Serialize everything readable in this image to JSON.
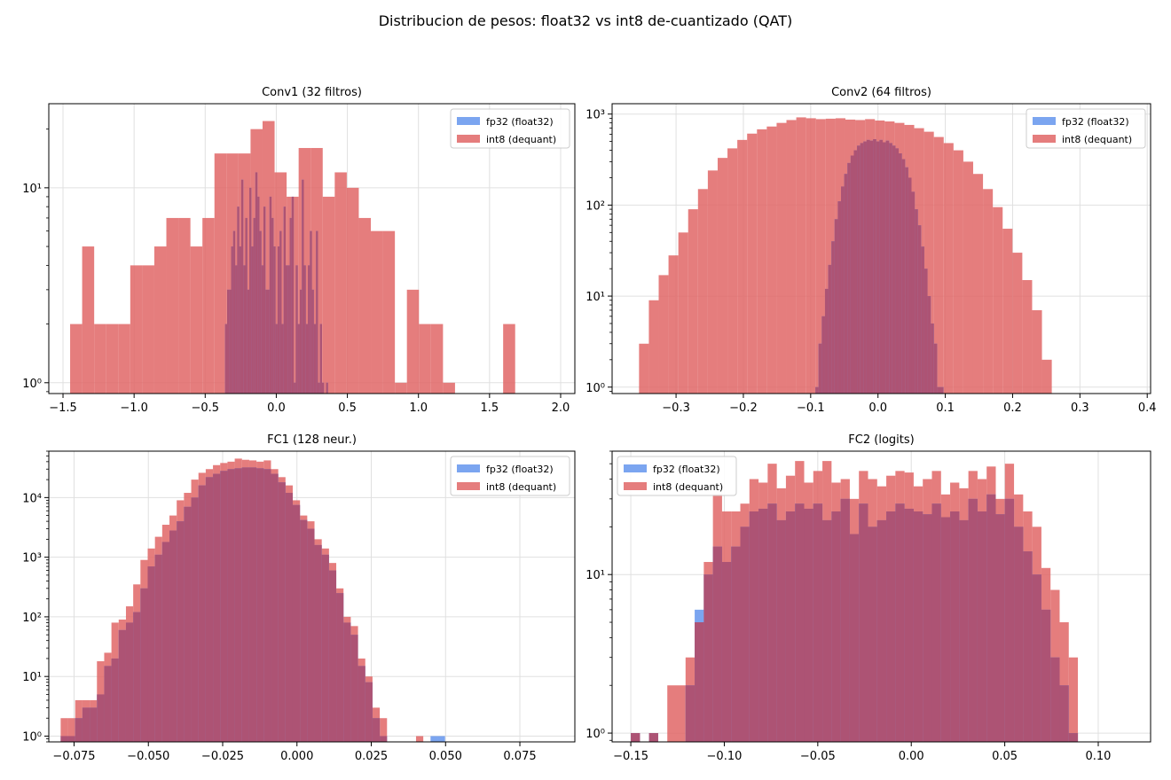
{
  "figure": {
    "suptitle": "Distribucion de pesos: float32 vs int8 de-cuantizado (QAT)"
  },
  "colors": {
    "fp32": "#6495ed",
    "int8": "#e06666",
    "overlap": "#b0506e",
    "grid": "#e0e0e0"
  },
  "legend_labels": [
    "fp32 (float32)",
    "int8 (dequant)"
  ],
  "chart_data": [
    {
      "type": "bar",
      "title": "Conv1 (32 filtros)",
      "yscale": "log",
      "xlim": [
        -1.6,
        2.1
      ],
      "ylim": [
        0.88,
        27
      ],
      "x_ticks": [
        -1.5,
        -1.0,
        -0.5,
        0.0,
        0.5,
        1.0,
        1.5,
        2.0
      ],
      "x_tick_labels": [
        "−1.5",
        "−1.0",
        "−0.5",
        "0.0",
        "0.5",
        "1.0",
        "1.5",
        "2.0"
      ],
      "y_ticks": [
        1,
        10
      ],
      "y_tick_labels": [
        "10⁰",
        "10¹"
      ],
      "legend_position": "upper right",
      "series": [
        {
          "name": "int8 (dequant)",
          "start": -1.45,
          "width": 0.0846,
          "values": [
            2,
            5,
            2,
            2,
            2,
            4,
            4,
            5,
            7,
            7,
            5,
            7,
            15,
            15,
            15,
            20,
            22,
            12,
            9,
            16,
            16,
            9,
            12,
            10,
            7,
            6,
            6,
            1,
            3,
            2,
            2,
            1,
            0,
            0,
            0,
            0,
            2
          ]
        },
        {
          "name": "fp32 (float32)",
          "start": -0.36,
          "width": 0.0142,
          "values": [
            2,
            3,
            3,
            5,
            6,
            4,
            8,
            5,
            11,
            4,
            7,
            3,
            10,
            5,
            7,
            12,
            9,
            6,
            4,
            8,
            3,
            3,
            9,
            7,
            5,
            2,
            5,
            6,
            2,
            8,
            4,
            4,
            7,
            9,
            1,
            4,
            2,
            3,
            11,
            4,
            2,
            4,
            6,
            3,
            2,
            6,
            1,
            2,
            1,
            0,
            1
          ]
        }
      ]
    },
    {
      "type": "bar",
      "title": "Conv2 (64 filtros)",
      "yscale": "log",
      "xlim": [
        -0.395,
        0.405
      ],
      "ylim": [
        0.85,
        1300
      ],
      "x_ticks": [
        -0.3,
        -0.2,
        -0.1,
        0.0,
        0.1,
        0.2,
        0.3,
        0.4
      ],
      "x_tick_labels": [
        "−0.3",
        "−0.2",
        "−0.1",
        "0.0",
        "0.1",
        "0.2",
        "0.3",
        "0.4"
      ],
      "y_ticks": [
        1,
        10,
        100,
        1000
      ],
      "y_tick_labels": [
        "10⁰",
        "10¹",
        "10²",
        "10³"
      ],
      "legend_position": "upper right",
      "series": [
        {
          "name": "int8 (dequant)",
          "start": -0.355,
          "width": 0.0146,
          "values": [
            3,
            9,
            17,
            28,
            50,
            90,
            150,
            240,
            330,
            420,
            520,
            610,
            680,
            730,
            800,
            860,
            920,
            900,
            880,
            890,
            900,
            870,
            860,
            880,
            850,
            830,
            800,
            760,
            700,
            640,
            560,
            480,
            400,
            300,
            220,
            150,
            95,
            55,
            30,
            15,
            7,
            2
          ]
        },
        {
          "name": "fp32 (float32)",
          "start": -0.093,
          "width": 0.00476,
          "values": [
            1,
            3,
            6,
            12,
            22,
            40,
            70,
            110,
            160,
            220,
            290,
            350,
            400,
            450,
            480,
            500,
            520,
            510,
            530,
            500,
            520,
            490,
            510,
            480,
            450,
            420,
            370,
            320,
            260,
            200,
            140,
            90,
            60,
            35,
            20,
            10,
            5,
            3,
            1,
            1
          ]
        }
      ]
    },
    {
      "type": "bar",
      "title": "FC1 (128 neur.)",
      "yscale": "log",
      "xlim": [
        -0.0835,
        0.0935
      ],
      "ylim": [
        0.8,
        60000
      ],
      "x_ticks": [
        -0.075,
        -0.05,
        -0.025,
        0.0,
        0.025,
        0.05,
        0.075
      ],
      "x_tick_labels": [
        "−0.075",
        "−0.050",
        "−0.025",
        "0.000",
        "0.025",
        "0.050",
        "0.075"
      ],
      "y_ticks": [
        1,
        10,
        100,
        1000,
        10000
      ],
      "y_tick_labels": [
        "10⁰",
        "10¹",
        "10²",
        "10³",
        "10⁴"
      ],
      "legend_position": "upper right",
      "series": [
        {
          "name": "int8 (dequant)",
          "start": -0.0795,
          "width": 0.00244,
          "values": [
            2,
            2,
            4,
            4,
            4,
            18,
            25,
            80,
            90,
            150,
            350,
            900,
            1400,
            2200,
            3500,
            5000,
            9000,
            12000,
            20000,
            26000,
            30000,
            35000,
            38000,
            40000,
            45000,
            43000,
            42000,
            40000,
            42000,
            30000,
            22000,
            16000,
            9000,
            5000,
            4000,
            2000,
            1400,
            800,
            300,
            100,
            70,
            20,
            10,
            3,
            2,
            0,
            0,
            0,
            0,
            1,
            0,
            0,
            0
          ]
        },
        {
          "name": "fp32 (float32)",
          "start": -0.0795,
          "width": 0.00244,
          "values": [
            1,
            1,
            2,
            3,
            3,
            5,
            15,
            20,
            60,
            80,
            120,
            300,
            700,
            1100,
            1800,
            2800,
            4000,
            7000,
            10000,
            16000,
            22000,
            25000,
            28000,
            30000,
            31000,
            32000,
            32000,
            31000,
            30000,
            25000,
            18000,
            12000,
            7500,
            4200,
            3000,
            1600,
            1100,
            600,
            250,
            80,
            50,
            15,
            8,
            2,
            1,
            0,
            0,
            0,
            0,
            0,
            0,
            1,
            1
          ]
        }
      ]
    },
    {
      "type": "bar",
      "title": "FC2 (logits)",
      "yscale": "log",
      "xlim": [
        -0.16,
        0.128
      ],
      "ylim": [
        0.88,
        60
      ],
      "x_ticks": [
        -0.15,
        -0.1,
        -0.05,
        0.0,
        0.05,
        0.1
      ],
      "x_tick_labels": [
        "−0.15",
        "−0.10",
        "−0.05",
        "0.00",
        "0.05",
        "0.10"
      ],
      "y_ticks": [
        1,
        10
      ],
      "y_tick_labels": [
        "10⁰",
        "10¹"
      ],
      "legend_position": "upper left",
      "series": [
        {
          "name": "int8 (dequant)",
          "start": -0.15,
          "width": 0.00488,
          "values": [
            1,
            0,
            1,
            0,
            2,
            2,
            3,
            5,
            12,
            32,
            25,
            25,
            28,
            40,
            38,
            50,
            35,
            42,
            52,
            38,
            45,
            52,
            38,
            40,
            30,
            45,
            40,
            36,
            42,
            45,
            44,
            36,
            40,
            45,
            32,
            38,
            35,
            45,
            40,
            48,
            30,
            50,
            32,
            25,
            20,
            11,
            8,
            5,
            3
          ]
        },
        {
          "name": "fp32 (float32)",
          "start": -0.15,
          "width": 0.00488,
          "values": [
            1,
            0,
            1,
            0,
            0,
            0,
            2,
            6,
            10,
            15,
            12,
            15,
            20,
            25,
            26,
            28,
            22,
            25,
            28,
            26,
            28,
            22,
            25,
            30,
            18,
            28,
            20,
            22,
            25,
            28,
            26,
            25,
            24,
            28,
            23,
            25,
            22,
            30,
            25,
            32,
            24,
            30,
            20,
            14,
            10,
            6,
            3,
            2,
            1
          ]
        }
      ]
    }
  ]
}
